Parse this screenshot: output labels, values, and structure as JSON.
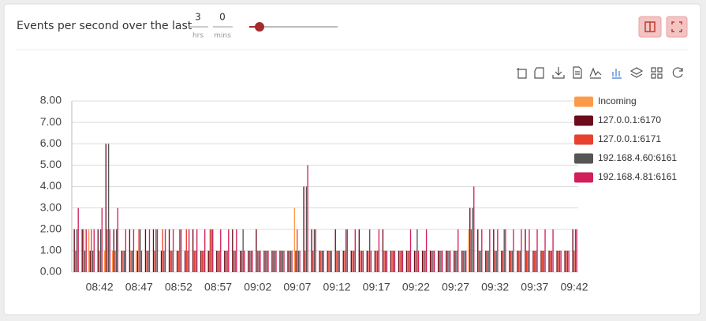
{
  "header": {
    "title": "Events per second over the last",
    "hours": 3,
    "hours_unit": "hrs",
    "minutes": 0,
    "minutes_unit": "mins"
  },
  "chart_data": {
    "type": "bar",
    "categories": [
      null,
      null,
      null,
      "08:42",
      null,
      null,
      null,
      null,
      "08:47",
      null,
      null,
      null,
      null,
      "08:52",
      null,
      null,
      null,
      null,
      "08:57",
      null,
      null,
      null,
      null,
      "09:02",
      null,
      null,
      null,
      null,
      "09:07",
      null,
      null,
      null,
      null,
      "09:12",
      null,
      null,
      null,
      null,
      "09:17",
      null,
      null,
      null,
      null,
      "09:22",
      null,
      null,
      null,
      null,
      "09:27",
      null,
      null,
      null,
      null,
      "09:32",
      null,
      null,
      null,
      null,
      "09:37",
      null,
      null,
      null,
      null,
      "09:42"
    ],
    "series": [
      {
        "name": "Incoming",
        "color": "#fd9a4a",
        "values": [
          0,
          0,
          2,
          0,
          1,
          1,
          0,
          0,
          1,
          0,
          0,
          0,
          0,
          0,
          0,
          0,
          0,
          1,
          0,
          0,
          0,
          0,
          0,
          0,
          0,
          0,
          0,
          0,
          3,
          0,
          0,
          0,
          0,
          0,
          0,
          0,
          0,
          0,
          0,
          0,
          0,
          0,
          0,
          0,
          0,
          0,
          0,
          0,
          0,
          0,
          2,
          0,
          0,
          0,
          0,
          0,
          0,
          0,
          0,
          0,
          0,
          0,
          0,
          0
        ]
      },
      {
        "name": "127.0.0.1:6170",
        "color": "#6b0b1b",
        "values": [
          2,
          2,
          1,
          2,
          6,
          2,
          1,
          2,
          1,
          2,
          2,
          1,
          2,
          1,
          1,
          2,
          1,
          1,
          1,
          1,
          2,
          1,
          1,
          2,
          1,
          1,
          1,
          1,
          1,
          4,
          2,
          1,
          1,
          2,
          1,
          1,
          2,
          1,
          1,
          2,
          1,
          1,
          1,
          1,
          1,
          1,
          1,
          1,
          1,
          1,
          3,
          2,
          1,
          2,
          1,
          1,
          1,
          2,
          1,
          1,
          1,
          1,
          1,
          2
        ]
      },
      {
        "name": "127.0.0.1:6171",
        "color": "#e8412f",
        "values": [
          1,
          2,
          2,
          1,
          2,
          1,
          1,
          1,
          2,
          1,
          1,
          2,
          1,
          1,
          2,
          1,
          1,
          2,
          1,
          1,
          1,
          1,
          1,
          1,
          1,
          1,
          1,
          1,
          2,
          1,
          1,
          1,
          1,
          1,
          1,
          1,
          1,
          1,
          1,
          1,
          1,
          1,
          1,
          1,
          1,
          1,
          1,
          1,
          1,
          1,
          2,
          1,
          1,
          1,
          1,
          1,
          1,
          1,
          1,
          1,
          1,
          1,
          1,
          1
        ]
      },
      {
        "name": "192.168.4.60:6161",
        "color": "#555555",
        "values": [
          2,
          1,
          1,
          2,
          6,
          2,
          1,
          1,
          2,
          1,
          2,
          1,
          1,
          2,
          1,
          1,
          1,
          2,
          1,
          1,
          1,
          2,
          1,
          1,
          1,
          1,
          1,
          1,
          1,
          4,
          2,
          1,
          1,
          1,
          2,
          1,
          1,
          2,
          1,
          1,
          1,
          1,
          1,
          2,
          1,
          1,
          1,
          1,
          1,
          1,
          3,
          1,
          1,
          1,
          2,
          1,
          1,
          1,
          1,
          1,
          1,
          1,
          1,
          2
        ]
      },
      {
        "name": "192.168.4.81:6161",
        "color": "#d11f5c",
        "values": [
          3,
          2,
          2,
          3,
          2,
          3,
          2,
          2,
          1,
          2,
          2,
          2,
          2,
          2,
          2,
          2,
          2,
          2,
          2,
          2,
          2,
          1,
          1,
          1,
          1,
          1,
          1,
          1,
          1,
          5,
          2,
          1,
          1,
          1,
          2,
          2,
          1,
          1,
          2,
          1,
          1,
          1,
          2,
          1,
          2,
          1,
          1,
          1,
          2,
          1,
          4,
          2,
          2,
          2,
          2,
          2,
          2,
          2,
          2,
          2,
          2,
          1,
          1,
          2
        ]
      }
    ],
    "ylim": [
      0,
      8
    ],
    "yticks": [
      {
        "value": 0,
        "label": "0.00"
      },
      {
        "value": 1,
        "label": "1.00"
      },
      {
        "value": 2,
        "label": "2.00"
      },
      {
        "value": 3,
        "label": "3.00"
      },
      {
        "value": 4,
        "label": "4.00"
      },
      {
        "value": 5,
        "label": "5.00"
      },
      {
        "value": 6,
        "label": "6.00"
      },
      {
        "value": 7,
        "label": "7.00"
      },
      {
        "value": 8,
        "label": "8.00"
      }
    ],
    "grid": true,
    "legend": "right"
  }
}
